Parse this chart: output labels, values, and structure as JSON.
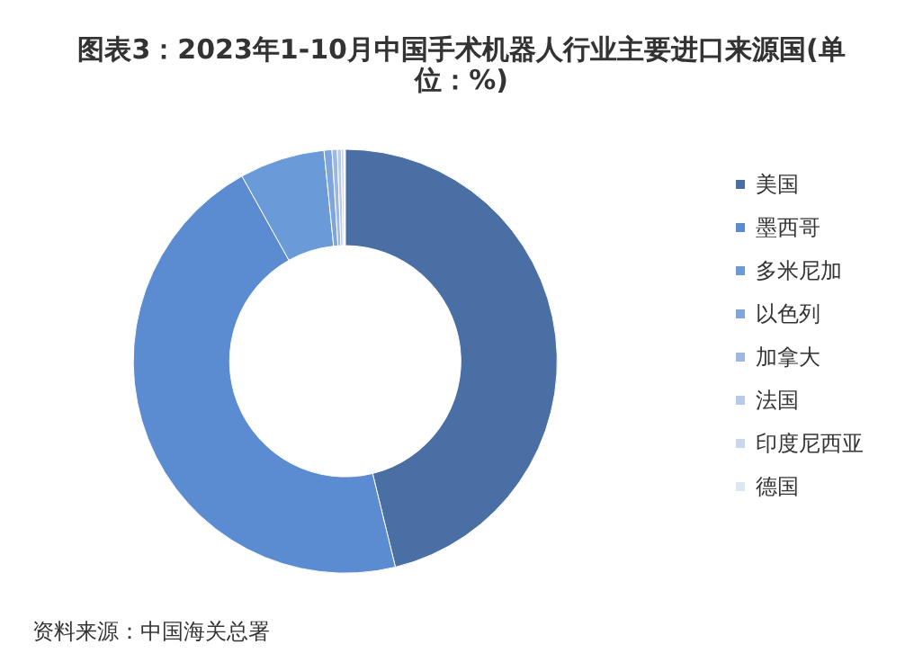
{
  "chart_data": {
    "type": "donut",
    "title": "图表3：2023年1-10月中国手术机器人行业主要进口来源国(单位：%)",
    "categories": [
      "美国",
      "墨西哥",
      "多米尼加",
      "以色列",
      "加拿大",
      "法国",
      "印度尼西亚",
      "德国"
    ],
    "values": [
      46.2,
      45.7,
      6.5,
      0.6,
      0.4,
      0.3,
      0.2,
      0.1
    ],
    "colors": [
      "#4a6fa5",
      "#5b8bd0",
      "#6b9ad8",
      "#7fa5dc",
      "#9db8e0",
      "#b5cbe8",
      "#c9d8ee",
      "#dde7f4"
    ],
    "legend": "right",
    "annotations": [
      "资料来源：中国海关总署"
    ]
  }
}
